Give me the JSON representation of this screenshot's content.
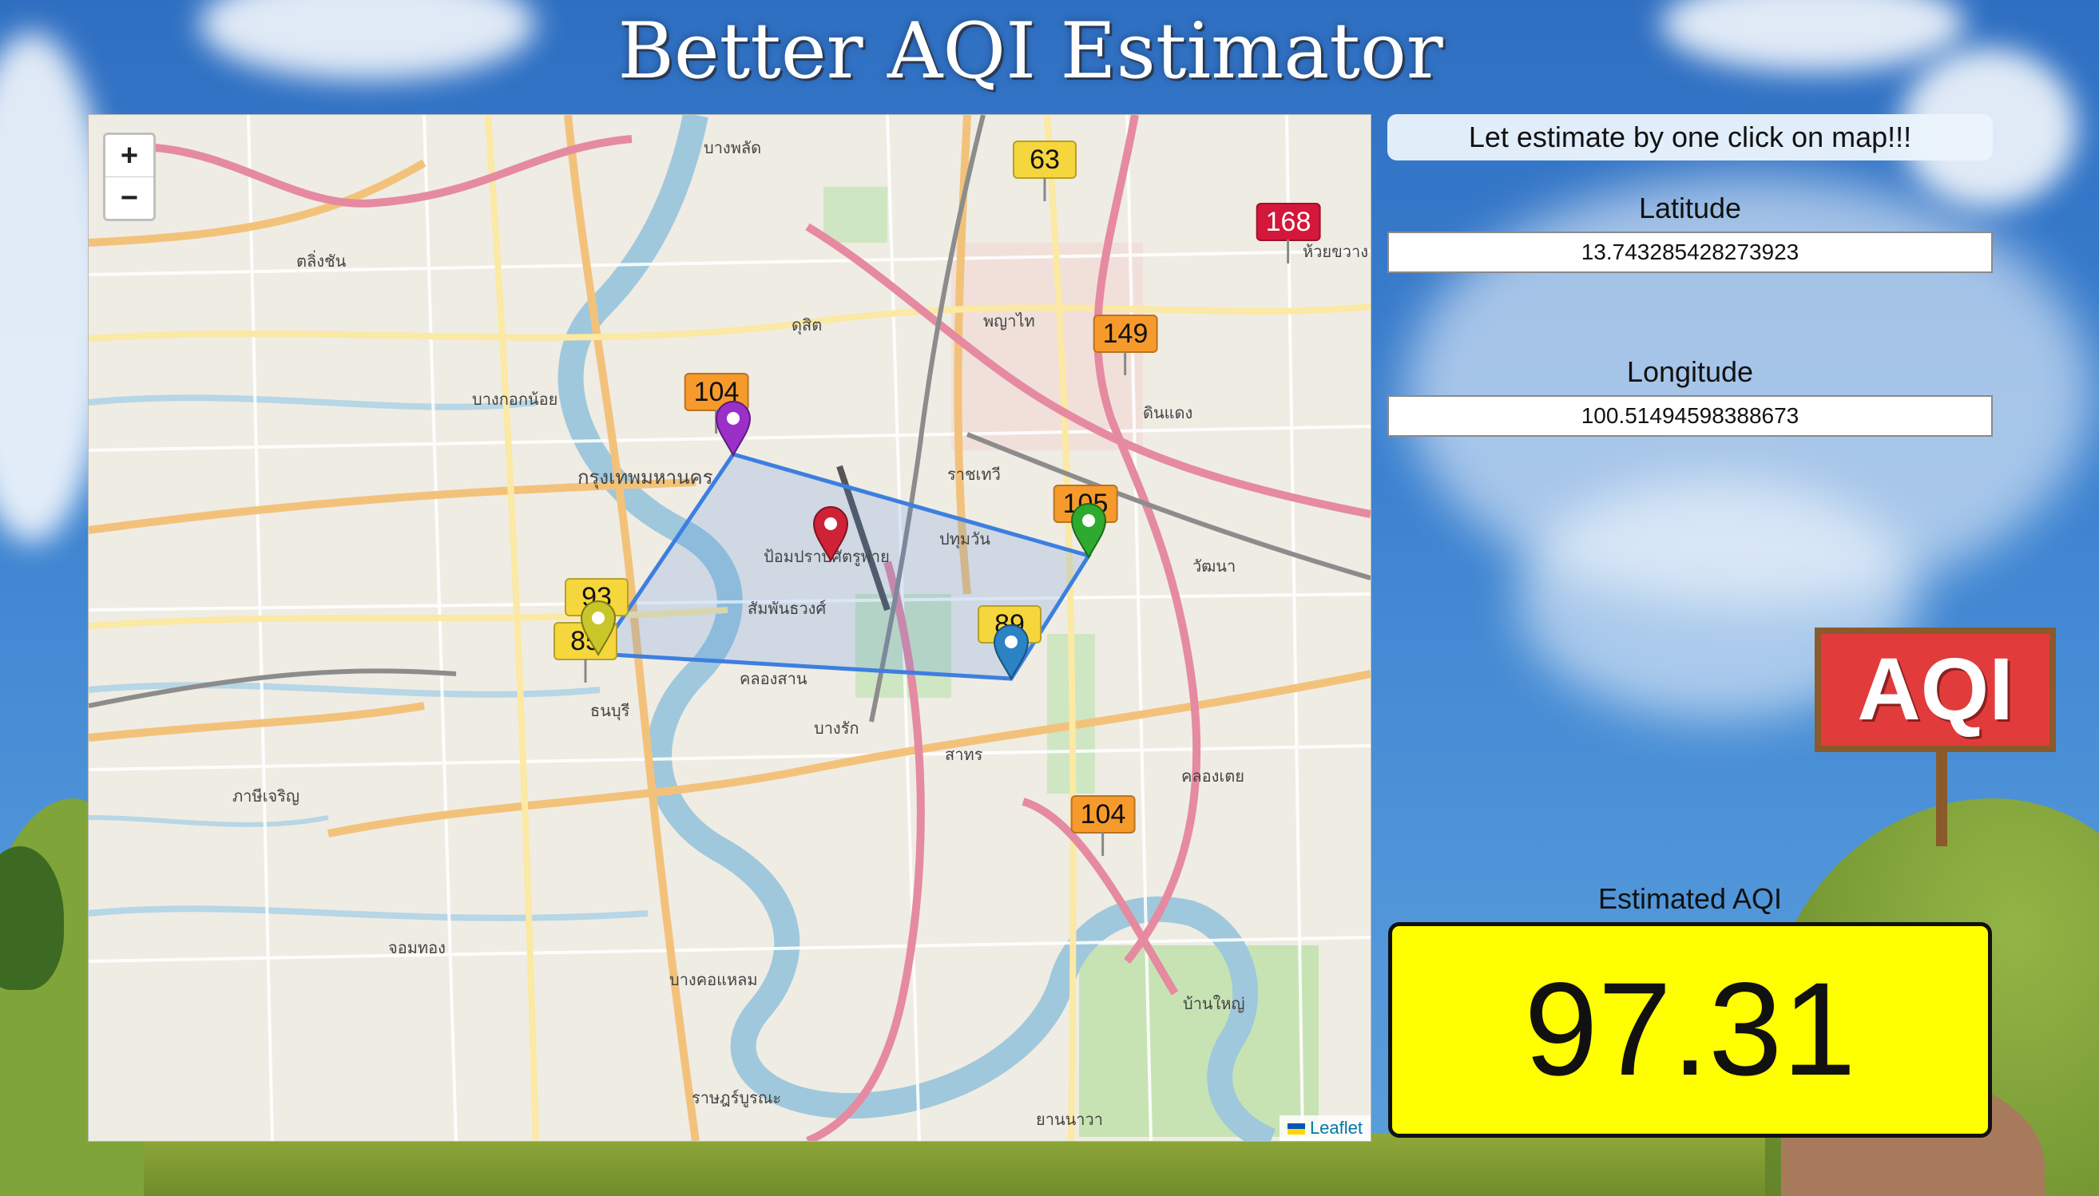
{
  "app": {
    "title": "Better AQI Estimator"
  },
  "map": {
    "zoom_in_label": "+",
    "zoom_out_label": "−",
    "attribution": "Leaflet",
    "stations": [
      {
        "aqi": "63",
        "color": "#f5d63d"
      },
      {
        "aqi": "168",
        "color": "#d4173a"
      },
      {
        "aqi": "149",
        "color": "#f79a2c"
      },
      {
        "aqi": "104",
        "color": "#f79a2c"
      },
      {
        "aqi": "105",
        "color": "#f79a2c"
      },
      {
        "aqi": "93",
        "color": "#f5d63d"
      },
      {
        "aqi": "85",
        "color": "#f5d63d"
      },
      {
        "aqi": "89",
        "color": "#f5d63d"
      },
      {
        "aqi": "104",
        "color": "#f79a2c"
      }
    ],
    "markers": [
      {
        "name": "purple",
        "color": "#9b30c8"
      },
      {
        "name": "red",
        "color": "#cf2237"
      },
      {
        "name": "green",
        "color": "#2eaa2e"
      },
      {
        "name": "yellow",
        "color": "#c9c62a"
      },
      {
        "name": "blue",
        "color": "#2b83c4"
      }
    ],
    "polygon_color": "#3d7fe0",
    "place_labels": [
      "กรุงเทพมหานคร",
      "ป้อมปราบศัตรูพ่าย",
      "สัมพันธวงศ์",
      "ราชเทวี",
      "ปทุมวัน",
      "คลองสาน",
      "ธนบุรี",
      "บางรัก",
      "สาทร",
      "วัฒนา",
      "คลองเตย",
      "ดินแดง",
      "บางพลัด",
      "บางกอกน้อย",
      "ตลิ่งชัน",
      "ภาษีเจริญ",
      "จอมทอง",
      "บางคอแหลม",
      "ดุสิต",
      "พญาไท",
      "ห้วยขวาง",
      "ราษฎร์บูรณะ",
      "ยานนาวา",
      "บ้านใหญ่"
    ]
  },
  "panel": {
    "banner": "Let estimate by one click on map!!!",
    "latitude_label": "Latitude",
    "latitude_value": "13.743285428273923",
    "longitude_label": "Longitude",
    "longitude_value": "100.51494598388673",
    "estimated_label": "Estimated AQI",
    "estimated_value": "97.31",
    "estimated_color": "#ffff00"
  },
  "sign": {
    "text": "AQI"
  }
}
